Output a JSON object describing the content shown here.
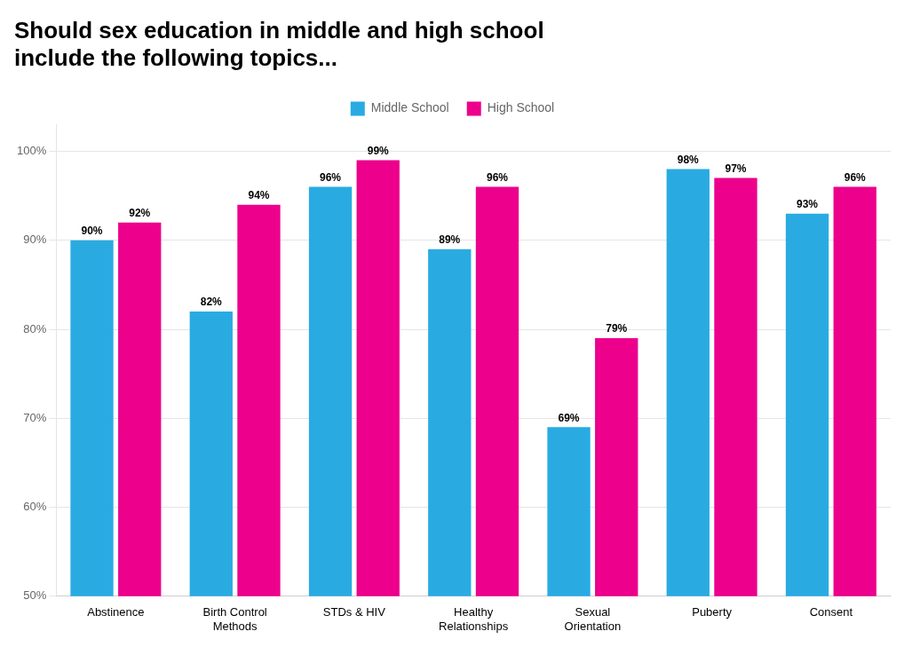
{
  "chart_data": {
    "type": "bar",
    "title": [
      "Should sex education in middle and high school",
      "include the following topics..."
    ],
    "categories": [
      "Abstinence",
      "Birth Control\nMethods",
      "STDs & HIV",
      "Healthy\nRelationships",
      "Sexual\nOrientation",
      "Puberty",
      "Consent"
    ],
    "series": [
      {
        "name": "Middle School",
        "color": "#29ABE2",
        "values": [
          90,
          82,
          96,
          89,
          69,
          98,
          93
        ],
        "value_labels": [
          "90%",
          "82%",
          "96%",
          "89%",
          "69%",
          "98%",
          "93%"
        ]
      },
      {
        "name": "High School",
        "color": "#EC008C",
        "values": [
          92,
          94,
          99,
          96,
          79,
          97,
          96
        ],
        "value_labels": [
          "92%",
          "94%",
          "99%",
          "96%",
          "79%",
          "97%",
          "96%"
        ]
      }
    ],
    "ylim": [
      50,
      103
    ],
    "yticks": [
      {
        "value": 50,
        "label": "50%"
      },
      {
        "value": 60,
        "label": "60%"
      },
      {
        "value": 70,
        "label": "70%"
      },
      {
        "value": 80,
        "label": "80%"
      },
      {
        "value": 90,
        "label": "90%"
      },
      {
        "value": 100,
        "label": "100%"
      }
    ],
    "grid": true,
    "legend": "top",
    "data_labels": true
  }
}
